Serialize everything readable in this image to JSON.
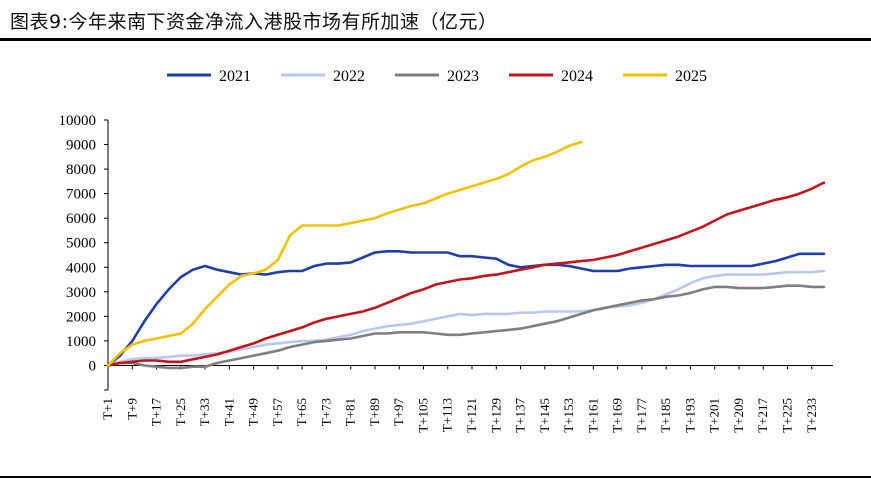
{
  "title": "图表9:今年来南下资金净流入港股市场有所加速（亿元）",
  "chart_data": {
    "type": "line",
    "title": "图表9:今年来南下资金净流入港股市场有所加速（亿元）",
    "xlabel": "",
    "ylabel": "",
    "ylim": [
      -1000,
      10000
    ],
    "yticks": [
      -1000,
      0,
      1000,
      2000,
      3000,
      4000,
      5000,
      6000,
      7000,
      8000,
      9000,
      10000
    ],
    "ytick_labels": [
      "",
      "0",
      "1000",
      "2000",
      "3000",
      "4000",
      "5000",
      "6000",
      "7000",
      "8000",
      "9000",
      "10000"
    ],
    "xlim": [
      1,
      240
    ],
    "xticks": [
      1,
      9,
      17,
      25,
      33,
      41,
      49,
      57,
      65,
      73,
      81,
      89,
      97,
      105,
      113,
      121,
      129,
      137,
      145,
      153,
      161,
      169,
      177,
      185,
      193,
      201,
      209,
      217,
      225,
      233
    ],
    "xtick_labels": [
      "T+1",
      "T+9",
      "T+17",
      "T+25",
      "T+33",
      "T+41",
      "T+49",
      "T+57",
      "T+65",
      "T+73",
      "T+81",
      "T+89",
      "T+97",
      "T+105",
      "T+113",
      "T+121",
      "T+129",
      "T+137",
      "T+145",
      "T+153",
      "T+161",
      "T+169",
      "T+177",
      "T+185",
      "T+193",
      "T+201",
      "T+209",
      "T+217",
      "T+225",
      "T+233"
    ],
    "grid": false,
    "legend_position": "top",
    "series": [
      {
        "name": "2021",
        "color": "#1f3fa8",
        "x": [
          1,
          5,
          9,
          13,
          17,
          21,
          25,
          29,
          33,
          37,
          41,
          45,
          49,
          53,
          57,
          61,
          65,
          69,
          73,
          77,
          81,
          85,
          89,
          93,
          97,
          101,
          105,
          109,
          113,
          117,
          121,
          125,
          129,
          133,
          137,
          141,
          145,
          149,
          153,
          157,
          161,
          165,
          169,
          173,
          177,
          181,
          185,
          189,
          193,
          197,
          201,
          205,
          209,
          213,
          217,
          221,
          225,
          229,
          233,
          237
        ],
        "y": [
          0,
          400,
          1000,
          1800,
          2500,
          3100,
          3600,
          3900,
          4050,
          3900,
          3800,
          3700,
          3750,
          3700,
          3800,
          3850,
          3850,
          4050,
          4150,
          4150,
          4200,
          4400,
          4600,
          4650,
          4650,
          4600,
          4600,
          4600,
          4600,
          4450,
          4450,
          4400,
          4350,
          4100,
          4000,
          4050,
          4100,
          4100,
          4050,
          3950,
          3850,
          3850,
          3850,
          3950,
          4000,
          4050,
          4100,
          4100,
          4050,
          4050,
          4050,
          4050,
          4050,
          4050,
          4150,
          4250,
          4400,
          4550,
          4550,
          4550
        ]
      },
      {
        "name": "2022",
        "color": "#b8c8f0",
        "x": [
          1,
          5,
          9,
          13,
          17,
          21,
          25,
          29,
          33,
          37,
          41,
          45,
          49,
          53,
          57,
          61,
          65,
          69,
          73,
          77,
          81,
          85,
          89,
          93,
          97,
          101,
          105,
          109,
          113,
          117,
          121,
          125,
          129,
          133,
          137,
          141,
          145,
          149,
          153,
          157,
          161,
          165,
          169,
          173,
          177,
          181,
          185,
          189,
          193,
          197,
          201,
          205,
          209,
          213,
          217,
          221,
          225,
          229,
          233,
          237
        ],
        "y": [
          0,
          150,
          250,
          300,
          300,
          350,
          400,
          400,
          450,
          500,
          550,
          650,
          750,
          850,
          900,
          950,
          1000,
          1000,
          1050,
          1150,
          1250,
          1400,
          1500,
          1600,
          1650,
          1700,
          1800,
          1900,
          2000,
          2100,
          2050,
          2100,
          2100,
          2100,
          2150,
          2150,
          2200,
          2200,
          2200,
          2200,
          2250,
          2350,
          2400,
          2450,
          2550,
          2700,
          2900,
          3100,
          3350,
          3550,
          3650,
          3700,
          3700,
          3700,
          3700,
          3750,
          3800,
          3800,
          3800,
          3850
        ]
      },
      {
        "name": "2023",
        "color": "#7f7f7f",
        "x": [
          1,
          5,
          9,
          13,
          17,
          21,
          25,
          29,
          33,
          37,
          41,
          45,
          49,
          53,
          57,
          61,
          65,
          69,
          73,
          77,
          81,
          85,
          89,
          93,
          97,
          101,
          105,
          109,
          113,
          117,
          121,
          125,
          129,
          133,
          137,
          141,
          145,
          149,
          153,
          157,
          161,
          165,
          169,
          173,
          177,
          181,
          185,
          189,
          193,
          197,
          201,
          205,
          209,
          213,
          217,
          221,
          225,
          229,
          233,
          237
        ],
        "y": [
          0,
          100,
          100,
          0,
          -50,
          -100,
          -100,
          -50,
          -50,
          100,
          200,
          300,
          400,
          500,
          600,
          750,
          850,
          950,
          1000,
          1050,
          1100,
          1200,
          1300,
          1300,
          1350,
          1350,
          1350,
          1300,
          1250,
          1250,
          1300,
          1350,
          1400,
          1450,
          1500,
          1600,
          1700,
          1800,
          1950,
          2100,
          2250,
          2350,
          2450,
          2550,
          2650,
          2700,
          2800,
          2850,
          2950,
          3100,
          3200,
          3200,
          3150,
          3150,
          3150,
          3200,
          3250,
          3250,
          3200,
          3200
        ]
      },
      {
        "name": "2024",
        "color": "#c0161c",
        "x": [
          1,
          5,
          9,
          13,
          17,
          21,
          25,
          29,
          33,
          37,
          41,
          45,
          49,
          53,
          57,
          61,
          65,
          69,
          73,
          77,
          81,
          85,
          89,
          93,
          97,
          101,
          105,
          109,
          113,
          117,
          121,
          125,
          129,
          133,
          137,
          141,
          145,
          149,
          153,
          157,
          161,
          165,
          169,
          173,
          177,
          181,
          185,
          189,
          193,
          197,
          201,
          205,
          209,
          213,
          217,
          221,
          225,
          229,
          233,
          237
        ],
        "y": [
          0,
          100,
          150,
          200,
          200,
          150,
          150,
          250,
          350,
          450,
          600,
          750,
          900,
          1100,
          1250,
          1400,
          1550,
          1750,
          1900,
          2000,
          2100,
          2200,
          2350,
          2550,
          2750,
          2950,
          3100,
          3300,
          3400,
          3500,
          3550,
          3650,
          3700,
          3800,
          3900,
          4000,
          4100,
          4150,
          4200,
          4250,
          4300,
          4400,
          4500,
          4650,
          4800,
          4950,
          5100,
          5250,
          5450,
          5650,
          5900,
          6150,
          6300,
          6450,
          6600,
          6750,
          6850,
          7000,
          7200,
          7450
        ]
      },
      {
        "name": "2025",
        "color": "#f5c000",
        "x": [
          1,
          5,
          9,
          13,
          17,
          21,
          25,
          29,
          33,
          37,
          41,
          45,
          49,
          53,
          57,
          61,
          65,
          69,
          73,
          77,
          81,
          85,
          89,
          93,
          97,
          101,
          105,
          109,
          113,
          117,
          121,
          125,
          129,
          133,
          137,
          141,
          145,
          149,
          153,
          157
        ],
        "y": [
          0,
          500,
          850,
          1000,
          1100,
          1200,
          1300,
          1700,
          2300,
          2800,
          3300,
          3650,
          3750,
          3900,
          4300,
          5300,
          5700,
          5700,
          5700,
          5700,
          5800,
          5900,
          6000,
          6200,
          6350,
          6500,
          6600,
          6800,
          7000,
          7150,
          7300,
          7450,
          7600,
          7800,
          8100,
          8350,
          8500,
          8700,
          8950,
          9100
        ]
      }
    ]
  }
}
